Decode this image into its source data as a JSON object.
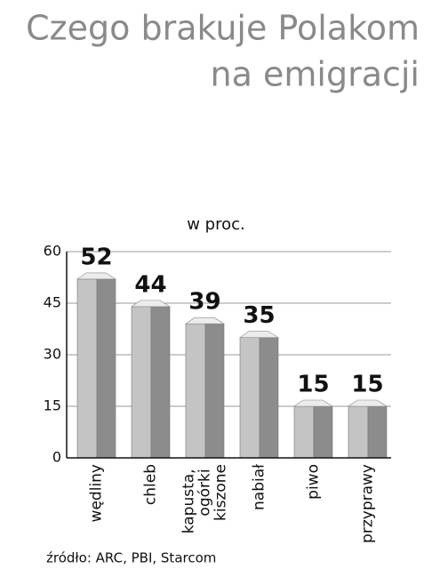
{
  "chart_data": {
    "type": "bar",
    "title": [
      "Czego  brakuje Polakom",
      "na emigracji"
    ],
    "subtitle": "w proc.",
    "categories": [
      "wędliny",
      "chleb",
      "kapusta, ogórki kiszone",
      "nabiał",
      "piwo",
      "przyprawy"
    ],
    "values": [
      52,
      44,
      39,
      35,
      15,
      15
    ],
    "ylim": [
      0,
      60
    ],
    "yticks": [
      0,
      15,
      30,
      45,
      60
    ],
    "grid": true,
    "color": "#c4c4c4",
    "source": "źródło: ARC, PBI, Starcom"
  }
}
